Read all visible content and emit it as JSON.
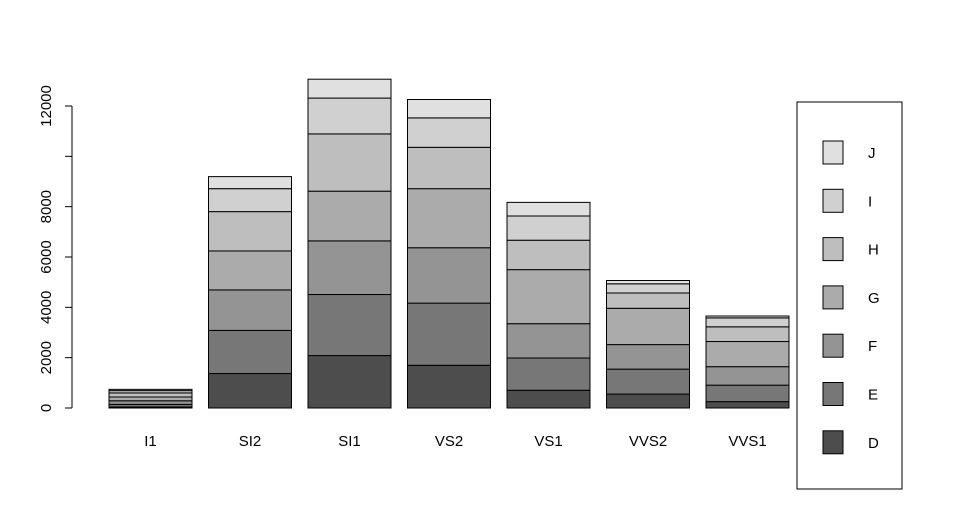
{
  "chart_data": {
    "type": "bar",
    "stacked": true,
    "categories": [
      "I1",
      "SI2",
      "SI1",
      "VS2",
      "VS1",
      "VVS2",
      "VVS1"
    ],
    "series": [
      {
        "name": "D",
        "color": "#4d4d4d",
        "values": [
          42,
          1370,
          2083,
          1697,
          705,
          553,
          252
        ]
      },
      {
        "name": "E",
        "color": "#777777",
        "values": [
          102,
          1713,
          2426,
          2470,
          1281,
          991,
          656
        ]
      },
      {
        "name": "F",
        "color": "#949494",
        "values": [
          143,
          1609,
          2131,
          2201,
          1364,
          975,
          734
        ]
      },
      {
        "name": "G",
        "color": "#ababab",
        "values": [
          150,
          1548,
          1976,
          2347,
          2148,
          1443,
          999
        ]
      },
      {
        "name": "H",
        "color": "#bebebe",
        "values": [
          162,
          1563,
          2275,
          1643,
          1169,
          608,
          585
        ]
      },
      {
        "name": "I",
        "color": "#d0d0d0",
        "values": [
          92,
          912,
          1424,
          1169,
          962,
          365,
          355
        ]
      },
      {
        "name": "J",
        "color": "#e0e0e0",
        "values": [
          50,
          479,
          750,
          731,
          542,
          131,
          74
        ]
      }
    ],
    "ylim": [
      0,
      13000
    ],
    "yticks": [
      0,
      2000,
      4000,
      6000,
      8000,
      10000,
      12000
    ],
    "ytick_labels": [
      "0",
      "2000",
      "4000",
      "6000",
      "8000",
      "",
      "12000"
    ],
    "legend": {
      "position": "right",
      "order": [
        "J",
        "I",
        "H",
        "G",
        "F",
        "E",
        "D"
      ]
    },
    "grid": false
  }
}
